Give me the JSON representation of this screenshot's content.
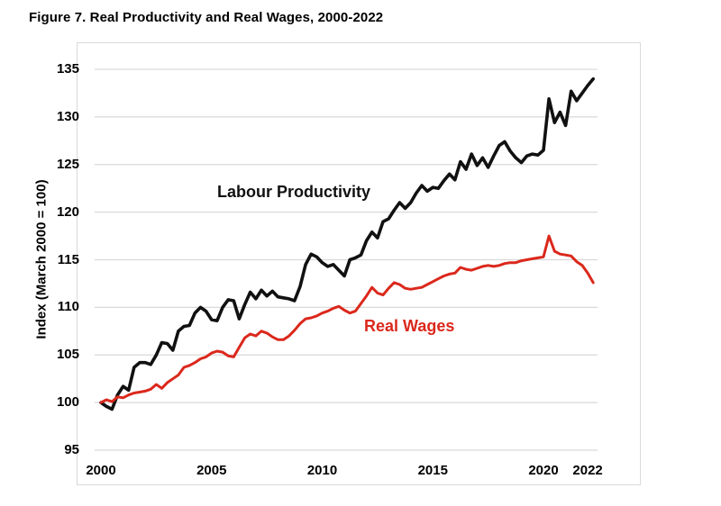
{
  "header": {
    "figure_title": "Figure 7. Real Productivity and Real Wages, 2000-2022"
  },
  "chart_data": {
    "type": "line",
    "title": "Figure 7. Real Productivity and Real Wages, 2000-2022",
    "xlabel": "",
    "ylabel": "Index (March 2000 = 100)",
    "x_start": 2000,
    "x_step_years": 0.25,
    "x_frequency": "quarterly",
    "xlim": [
      2000,
      2022.5
    ],
    "ylim": [
      95,
      135
    ],
    "grid": "horizontal",
    "legend_position": "inline-labels",
    "x_ticks": [
      "2000",
      "2005",
      "2010",
      "2015",
      "2020",
      "2022"
    ],
    "y_ticks": [
      "135",
      "130",
      "125",
      "120",
      "115",
      "110",
      "105",
      "100",
      "95"
    ],
    "series": [
      {
        "name": "Labour Productivity",
        "color": "#111111",
        "values": [
          100.0,
          99.6,
          99.3,
          100.8,
          101.7,
          101.3,
          103.7,
          104.2,
          104.2,
          104.0,
          105.0,
          106.3,
          106.2,
          105.5,
          107.5,
          108.0,
          108.1,
          109.4,
          110.0,
          109.6,
          108.7,
          108.6,
          110.0,
          110.8,
          110.7,
          108.8,
          110.3,
          111.6,
          110.9,
          111.8,
          111.2,
          111.7,
          111.1,
          111.0,
          110.9,
          110.7,
          112.2,
          114.5,
          115.6,
          115.3,
          114.7,
          114.3,
          114.5,
          113.9,
          113.3,
          115.0,
          115.2,
          115.5,
          117.0,
          117.9,
          117.3,
          119.0,
          119.3,
          120.2,
          121.0,
          120.4,
          121.0,
          122.0,
          122.8,
          122.2,
          122.6,
          122.5,
          123.3,
          124.0,
          123.4,
          125.3,
          124.5,
          126.1,
          124.9,
          125.7,
          124.7,
          125.9,
          127.0,
          127.4,
          126.4,
          125.7,
          125.2,
          125.9,
          126.1,
          126.0,
          126.5,
          131.9,
          129.4,
          130.5,
          129.1,
          132.7,
          131.7,
          132.5,
          133.3,
          134.0
        ]
      },
      {
        "name": "Real Wages",
        "color": "#db281c",
        "values": [
          100.0,
          100.3,
          100.1,
          100.6,
          100.5,
          100.8,
          101.0,
          101.1,
          101.2,
          101.4,
          101.9,
          101.5,
          102.1,
          102.5,
          102.9,
          103.7,
          103.9,
          104.2,
          104.6,
          104.8,
          105.2,
          105.4,
          105.3,
          104.9,
          104.8,
          105.8,
          106.8,
          107.2,
          107.0,
          107.5,
          107.3,
          106.9,
          106.6,
          106.6,
          107.0,
          107.6,
          108.3,
          108.8,
          108.9,
          109.1,
          109.4,
          109.6,
          109.9,
          110.1,
          109.7,
          109.4,
          109.6,
          110.4,
          111.2,
          112.1,
          111.5,
          111.3,
          112.0,
          112.6,
          112.4,
          112.0,
          111.9,
          112.0,
          112.1,
          112.4,
          112.7,
          113.0,
          113.3,
          113.5,
          113.6,
          114.2,
          114.0,
          113.9,
          114.1,
          114.3,
          114.4,
          114.3,
          114.4,
          114.6,
          114.7,
          114.7,
          114.9,
          115.0,
          115.1,
          115.2,
          115.3,
          117.5,
          115.9,
          115.6,
          115.5,
          115.4,
          114.8,
          114.4,
          113.6,
          112.6
        ]
      }
    ],
    "annotations": [
      {
        "text": "Labour Productivity",
        "color": "#111111"
      },
      {
        "text": "Real Wages",
        "color": "#db281c"
      }
    ],
    "colors": {
      "gridline": "#d9d9d9",
      "plot_border": "#d9d9d9",
      "background": "#ffffff"
    }
  }
}
